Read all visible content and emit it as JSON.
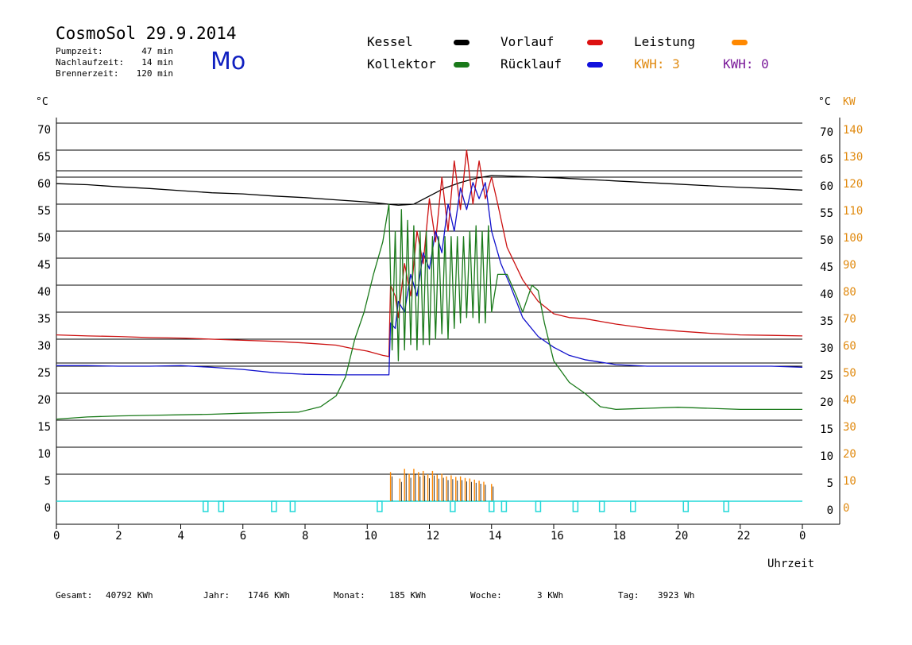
{
  "header": {
    "title": "CosmoSol 29.9.2014",
    "day": "Mo",
    "stats": [
      {
        "label": "Pumpzeit:",
        "value": "47 min"
      },
      {
        "label": "Nachlaufzeit:",
        "value": "14 min"
      },
      {
        "label": "Brennerzeit:",
        "value": "120 min"
      }
    ]
  },
  "legend": {
    "kessel": {
      "label": "Kessel",
      "color": "#000000"
    },
    "kollektor": {
      "label": "Kollektor",
      "color": "#1a7a1a"
    },
    "vorlauf": {
      "label": "Vorlauf",
      "color": "#cc1111"
    },
    "ruecklauf": {
      "label": "Rücklauf",
      "color": "#1111cc"
    },
    "leistung": {
      "label": "Leistung",
      "color": "#ff8800"
    },
    "kwh1": {
      "label": "KWH: 3",
      "color": "#e08a10"
    },
    "kwh2": {
      "label": "KWH: 0",
      "color": "#7a1a9a"
    }
  },
  "axes": {
    "left_unit": "°C",
    "right_unit_c": "°C",
    "right_unit_kw": "KW",
    "xlabel": "Uhrzeit",
    "x_ticks": [
      "0",
      "2",
      "4",
      "6",
      "8",
      "10",
      "12",
      "14",
      "16",
      "18",
      "20",
      "22",
      "0"
    ],
    "y_ticks": [
      "70",
      "65",
      "60",
      "55",
      "50",
      "45",
      "40",
      "35",
      "30",
      "25",
      "20",
      "15",
      "10",
      "5",
      "0"
    ],
    "kw_ticks": [
      "140",
      "130",
      "120",
      "110",
      "100",
      "90",
      "80",
      "70",
      "60",
      "50",
      "40",
      "30",
      "20",
      "10",
      "0"
    ]
  },
  "footer": [
    {
      "label": "Gesamt:",
      "value": "40792 KWh"
    },
    {
      "label": "Jahr:",
      "value": "1746 KWh"
    },
    {
      "label": "Monat:",
      "value": "185 KWh"
    },
    {
      "label": "Woche:",
      "value": "3 KWh"
    },
    {
      "label": "Tag:",
      "value": "3923 Wh"
    }
  ],
  "chart_data": {
    "type": "line",
    "xlabel": "Uhrzeit",
    "ylabel": "°C",
    "xlim": [
      0,
      24
    ],
    "ylim": [
      0,
      70
    ],
    "grid": true,
    "series": [
      {
        "name": "Kessel",
        "color": "#000000",
        "x": [
          0,
          1,
          2,
          3,
          4,
          5,
          6,
          7,
          8,
          9,
          10,
          10.5,
          11,
          11.5,
          12,
          12.5,
          13,
          13.5,
          14,
          14.5,
          15,
          16,
          17,
          18,
          19,
          20,
          21,
          22,
          23,
          24
        ],
        "y": [
          58.8,
          58.6,
          58.2,
          57.9,
          57.5,
          57.1,
          56.9,
          56.5,
          56.2,
          55.8,
          55.4,
          55.1,
          54.8,
          55.0,
          56.5,
          58.0,
          59.0,
          59.8,
          60.3,
          60.2,
          60.1,
          59.9,
          59.6,
          59.3,
          59.0,
          58.7,
          58.4,
          58.1,
          57.9,
          57.6
        ]
      },
      {
        "name": "Vorlauf",
        "color": "#cc1111",
        "x": [
          0,
          1,
          2,
          3,
          4,
          5,
          6,
          7,
          8,
          9,
          9.5,
          10,
          10.5,
          10.7,
          10.75,
          10.9,
          11,
          11.2,
          11.4,
          11.6,
          11.8,
          12,
          12.2,
          12.4,
          12.6,
          12.8,
          13,
          13.2,
          13.4,
          13.6,
          13.8,
          14,
          14.2,
          14.5,
          15,
          15.5,
          16,
          16.5,
          17,
          18,
          19,
          20,
          21,
          22,
          23,
          24
        ],
        "y": [
          30.8,
          30.6,
          30.5,
          30.3,
          30.2,
          30.0,
          29.8,
          29.6,
          29.3,
          28.9,
          28.3,
          27.8,
          27.0,
          26.8,
          40,
          38,
          34,
          44,
          38,
          50,
          44,
          56,
          48,
          60,
          50,
          63,
          54,
          65,
          55,
          63,
          56,
          60,
          55,
          47,
          41,
          37,
          34.7,
          34,
          33.8,
          32.8,
          32.0,
          31.5,
          31.1,
          30.8,
          30.7,
          30.6
        ]
      },
      {
        "name": "Rücklauf",
        "color": "#1111cc",
        "x": [
          0,
          1,
          2,
          3,
          4,
          5,
          6,
          7,
          8,
          9,
          10,
          10.7,
          10.75,
          10.9,
          11,
          11.2,
          11.4,
          11.6,
          11.8,
          12,
          12.2,
          12.4,
          12.6,
          12.8,
          13,
          13.2,
          13.4,
          13.6,
          13.8,
          14,
          14.3,
          14.6,
          15,
          15.5,
          16,
          16.5,
          17,
          18,
          19,
          20,
          21,
          22,
          23,
          24
        ],
        "y": [
          25.1,
          25.1,
          25.0,
          25.0,
          25.1,
          24.8,
          24.4,
          23.8,
          23.5,
          23.4,
          23.4,
          23.4,
          33,
          32,
          37,
          35,
          42,
          38,
          46,
          43,
          50,
          46,
          55,
          50,
          58,
          54,
          59,
          56,
          59,
          50,
          44,
          40,
          34,
          30.5,
          28.5,
          27.0,
          26.2,
          25.3,
          25.0,
          25.0,
          25.0,
          25.0,
          25.0,
          24.8
        ]
      },
      {
        "name": "Kollektor",
        "color": "#1a7a1a",
        "x": [
          0,
          1,
          2,
          3,
          4,
          5,
          6,
          7,
          7.8,
          8.5,
          9,
          9.3,
          9.6,
          9.9,
          10.2,
          10.5,
          10.7,
          10.8,
          10.9,
          11.0,
          11.1,
          11.2,
          11.3,
          11.4,
          11.5,
          11.6,
          11.7,
          11.8,
          11.9,
          12.0,
          12.1,
          12.2,
          12.3,
          12.4,
          12.5,
          12.6,
          12.7,
          12.8,
          12.9,
          13.0,
          13.1,
          13.2,
          13.3,
          13.4,
          13.5,
          13.6,
          13.7,
          13.8,
          13.9,
          14.0,
          14.2,
          14.5,
          14.8,
          15.0,
          15.3,
          15.5,
          15.7,
          16.0,
          16.5,
          17,
          17.5,
          18,
          18.5,
          19,
          20,
          21,
          22,
          23,
          24
        ],
        "y": [
          15.2,
          15.6,
          15.8,
          15.9,
          16.0,
          16.1,
          16.3,
          16.4,
          16.5,
          17.5,
          19.5,
          23,
          30,
          35,
          42,
          48,
          55,
          28,
          50,
          26,
          54,
          28,
          52,
          29,
          51,
          28,
          50,
          29,
          50,
          29,
          49,
          30,
          49,
          31,
          49,
          30,
          49,
          32,
          49,
          33,
          49,
          34,
          50,
          34,
          51,
          33,
          50,
          33,
          51,
          35,
          42,
          42,
          38,
          35,
          40,
          39,
          33,
          26,
          22,
          20,
          17.5,
          17.0,
          17.1,
          17.2,
          17.4,
          17.2,
          17.0,
          17.0,
          17.0
        ]
      }
    ],
    "leistung_bars": {
      "x": [
        10.75,
        11.05,
        11.2,
        11.35,
        11.5,
        11.65,
        11.8,
        11.95,
        12.1,
        12.25,
        12.4,
        12.55,
        12.7,
        12.85,
        13.0,
        13.15,
        13.3,
        13.45,
        13.6,
        13.75,
        14.0
      ],
      "y": [
        5.4,
        4.2,
        6.0,
        5.1,
        6.0,
        5.4,
        5.6,
        5.0,
        5.6,
        4.9,
        5.1,
        4.6,
        4.8,
        4.5,
        4.6,
        4.3,
        4.2,
        4.0,
        3.8,
        3.6,
        3.2
      ]
    },
    "pump_marks_x": [
      4.8,
      5.3,
      7.0,
      7.6,
      10.4,
      12.75,
      14.0,
      14.4,
      15.5,
      16.7,
      17.55,
      18.55,
      20.25,
      21.55
    ]
  }
}
